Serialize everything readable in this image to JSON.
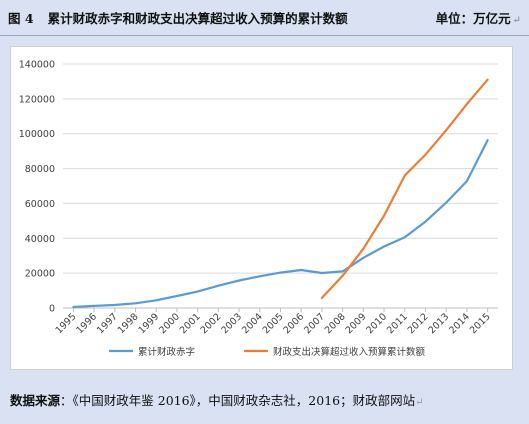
{
  "header": {
    "figure_number": "图 4",
    "title": "累计财政赤字和财政支出决算超过收入预算的累计数额",
    "unit": "单位：万亿元"
  },
  "source": {
    "label": "数据来源",
    "text": "：《中国财政年鉴 2016》，中国财政杂志社，2016；财政部网站"
  },
  "paragraph_mark": "↵",
  "chart_data": {
    "type": "line",
    "x": [
      "1995",
      "1996",
      "1997",
      "1998",
      "1999",
      "2000",
      "2001",
      "2002",
      "2003",
      "2004",
      "2005",
      "2006",
      "2007",
      "2008",
      "2009",
      "2010",
      "2011",
      "2012",
      "2013",
      "2014",
      "2015"
    ],
    "ylim": [
      0,
      140000
    ],
    "yticks": [
      0,
      20000,
      40000,
      60000,
      80000,
      100000,
      120000,
      140000
    ],
    "grid": true,
    "legend_position": "bottom",
    "series": [
      {
        "name": "累计财政赤字",
        "color": "#5b9bd5",
        "values": [
          600,
          1200,
          1700,
          2700,
          4400,
          6900,
          9400,
          12800,
          15800,
          18200,
          20300,
          21800,
          20100,
          21000,
          28800,
          35300,
          40600,
          49600,
          60500,
          72800,
          96300
        ]
      },
      {
        "name": "财政支出决算超过收入预算累计数额",
        "color": "#ed7d31",
        "values": [
          null,
          null,
          null,
          null,
          null,
          null,
          null,
          null,
          null,
          null,
          null,
          null,
          5800,
          18500,
          34000,
          53000,
          76000,
          88000,
          102000,
          117000,
          131000
        ]
      }
    ]
  }
}
